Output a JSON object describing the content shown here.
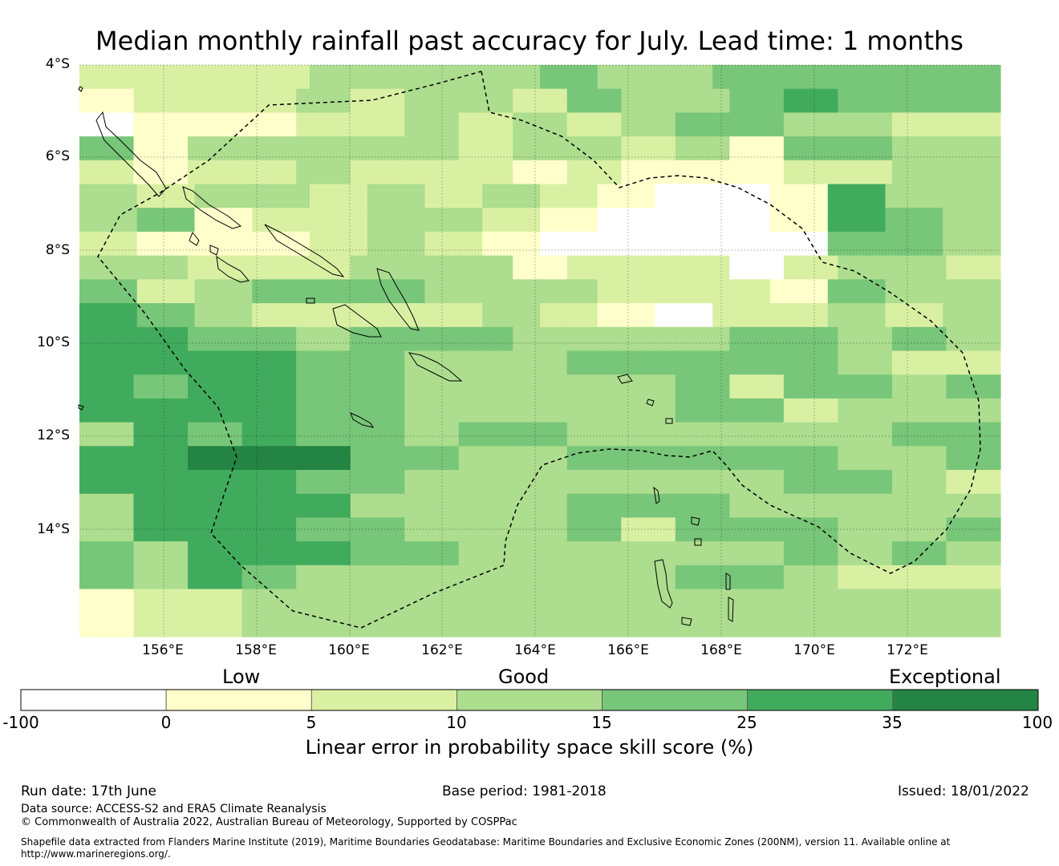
{
  "title": "Median monthly rainfall past accuracy for July. Lead time: 1 months",
  "map": {
    "lat_labels": [
      "4°S",
      "6°S",
      "8°S",
      "10°S",
      "12°S",
      "14°S"
    ],
    "lon_labels": [
      "156°E",
      "158°E",
      "160°E",
      "162°E",
      "164°E",
      "166°E",
      "168°E",
      "170°E",
      "172°E"
    ],
    "lon_range": [
      154.2,
      174.0
    ],
    "lat_range": [
      -16.3,
      -4.0
    ],
    "grid_step_deg": 0.8333,
    "grid": [
      "2222333343344444",
      "12223233243345444",
      "01112232323443322",
      "41333332332314433",
      "21223222121112233",
      "3233232321001533",
      "3412233210001543",
      "2111232100000443",
      "33222333122202332",
      "4234443332221433",
      "5432222321022323",
      "55443444333344343",
      "55554433344444322",
      "54554433333424434",
      "55554433333442333",
      "35454434433333344",
      "55666443344444334",
      "55554433333334432",
      "35555333344433333",
      "35554433342444334",
      "43555443333334343",
      "43543333333443222",
      "12233333333333333",
      "12233333333333333"
    ],
    "legend_colors": [
      "#ffffff",
      "#ffffcc",
      "#d9f0a3",
      "#addd8e",
      "#78c679",
      "#41ab5d",
      "#238443"
    ]
  },
  "colorbar": {
    "categories": [
      "Low",
      "Good",
      "Exceptional"
    ],
    "ticks": [
      "-100",
      "0",
      "5",
      "10",
      "15",
      "25",
      "35",
      "100"
    ],
    "colors": [
      "#ffffff",
      "#ffffcc",
      "#d9f0a3",
      "#addd8e",
      "#78c679",
      "#41ab5d",
      "#238443"
    ],
    "title": "Linear error in probability space skill score (%)"
  },
  "footer": {
    "run_date": "Run date: 17th June",
    "base_period": "Base period: 1981-2018",
    "issued": "Issued: 18/01/2022",
    "data_source": "Data source: ACCESS-S2 and ERA5 Climate Reanalysis",
    "copyright": "© Commonwealth of Australia 2022, Australian Bureau of Meteorology, Supported by COSPPac",
    "shapefile_1": "Shapefile data extracted from Flanders Marine Institute (2019), Maritime Boundaries Geodatabase: Maritime Boundaries and Exclusive Economic Zones (200NM), version 11. Available online at",
    "shapefile_2": "http://www.marineregions.org/."
  }
}
